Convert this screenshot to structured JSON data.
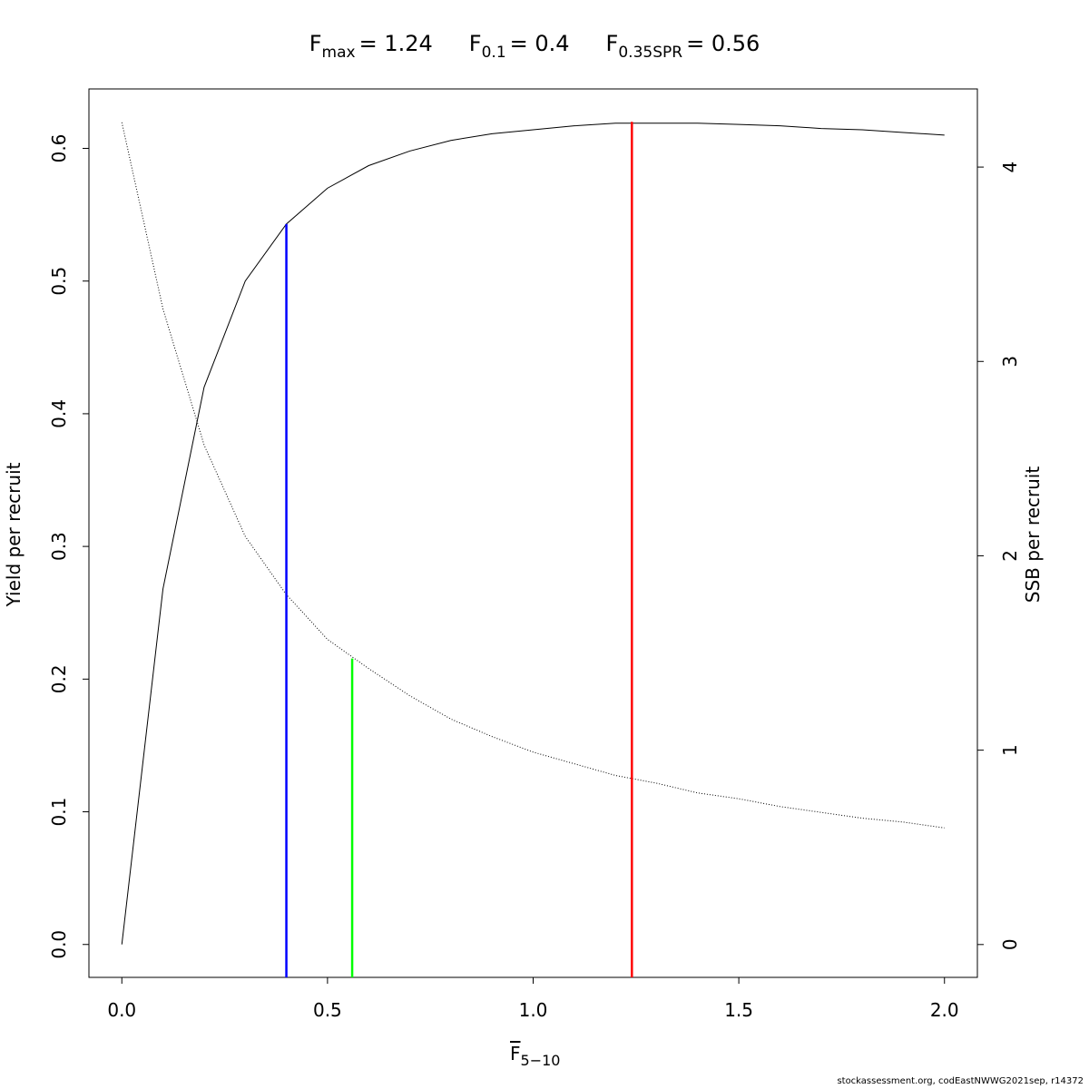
{
  "chart_data": {
    "type": "line",
    "reference_lines": [
      {
        "label": "F",
        "subscript": "max",
        "value_label": "= 1.24",
        "value": 1.24,
        "color": "#ff0000",
        "y_top": 0.62
      },
      {
        "label": "F",
        "subscript": "0.1",
        "value_label": "= 0.4",
        "value": 0.4,
        "color": "#0000ff",
        "y_top": 0.543
      },
      {
        "label": "F",
        "subscript": "0.35SPR",
        "value_label": "= 0.56",
        "value": 0.56,
        "color": "#00ff00",
        "y_top": 0.2155
      }
    ],
    "x_label": {
      "main": "F",
      "subscript": "5−10",
      "overline": true
    },
    "y_label": "Yield per recruit",
    "y2_label": "SSB per recruit",
    "x": [
      0,
      0.1,
      0.2,
      0.3,
      0.4,
      0.5,
      0.6,
      0.7,
      0.8,
      0.9,
      1.0,
      1.1,
      1.2,
      1.3,
      1.4,
      1.5,
      1.6,
      1.7,
      1.8,
      1.9,
      2.0
    ],
    "series": [
      {
        "color": "#000000",
        "style": "solid",
        "axis": "y",
        "values": [
          0,
          0.268,
          0.42,
          0.5,
          0.543,
          0.57,
          0.587,
          0.598,
          0.606,
          0.611,
          0.614,
          0.617,
          0.619,
          0.619,
          0.619,
          0.618,
          0.617,
          0.615,
          0.614,
          0.612,
          0.61
        ]
      },
      {
        "color": "#000000",
        "style": "dotted",
        "axis": "y2",
        "values": [
          4.23,
          3.27,
          2.57,
          2.1,
          1.8,
          1.57,
          1.42,
          1.28,
          1.16,
          1.07,
          0.99,
          0.93,
          0.87,
          0.83,
          0.78,
          0.75,
          0.71,
          0.68,
          0.65,
          0.63,
          0.6
        ]
      }
    ],
    "xlim": [
      -0.08,
      2.08
    ],
    "ylim": [
      -0.0248,
      0.6448
    ],
    "y2lim": [
      -0.169,
      4.402
    ],
    "xticks": [
      {
        "value": 0,
        "label": "0.0"
      },
      0.5,
      {
        "value": 1,
        "label": "1.0"
      },
      1.5,
      {
        "value": 2,
        "label": "2.0"
      }
    ],
    "yticks": [
      {
        "value": 0,
        "label": "0.0"
      },
      0.1,
      0.2,
      0.3,
      0.4,
      0.5,
      0.6
    ],
    "y2ticks": [
      0,
      1,
      2,
      3,
      4
    ],
    "footer": "stockassessment.org, codEastNWWG2021sep, r14372"
  }
}
